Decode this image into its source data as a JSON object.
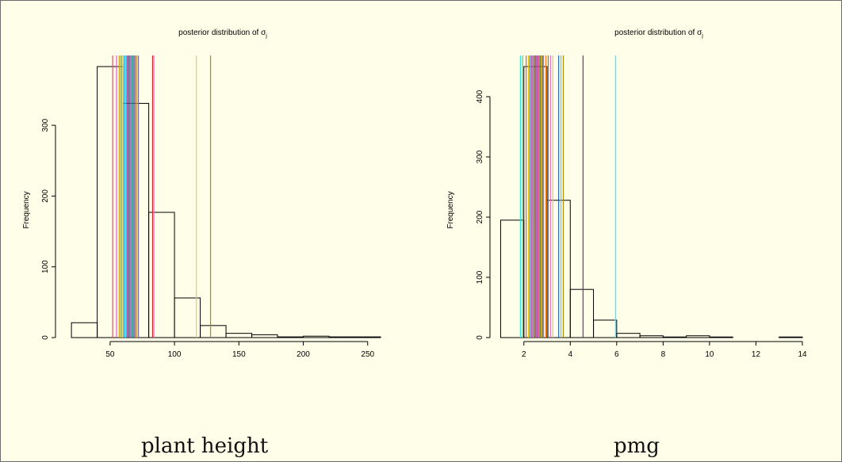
{
  "chart_data": [
    {
      "type": "bar",
      "title": "posterior distribution of σ",
      "title_subscript": "j",
      "xlabel": "",
      "ylabel": "Frequency",
      "caption": "plant height",
      "bins": [
        {
          "x0": 20,
          "x1": 40,
          "count": 21
        },
        {
          "x0": 40,
          "x1": 60,
          "count": 383
        },
        {
          "x0": 60,
          "x1": 80,
          "count": 331
        },
        {
          "x0": 80,
          "x1": 100,
          "count": 177
        },
        {
          "x0": 100,
          "x1": 120,
          "count": 56
        },
        {
          "x0": 120,
          "x1": 140,
          "count": 17
        },
        {
          "x0": 140,
          "x1": 160,
          "count": 6
        },
        {
          "x0": 160,
          "x1": 180,
          "count": 4
        },
        {
          "x0": 180,
          "x1": 200,
          "count": 1
        },
        {
          "x0": 200,
          "x1": 220,
          "count": 2
        },
        {
          "x0": 220,
          "x1": 240,
          "count": 1
        },
        {
          "x0": 240,
          "x1": 260,
          "count": 1
        }
      ],
      "vlines": [
        {
          "x": 52,
          "color": "#df536b"
        },
        {
          "x": 55,
          "color": "#d45ec9"
        },
        {
          "x": 57,
          "color": "#e69f00"
        },
        {
          "x": 58,
          "color": "#61d04f"
        },
        {
          "x": 59,
          "color": "#9e9e9e"
        },
        {
          "x": 60,
          "color": "#f5c710"
        },
        {
          "x": 61,
          "color": "#2297e6"
        },
        {
          "x": 62,
          "color": "#28e2e5"
        },
        {
          "x": 63,
          "color": "#cd0bbc"
        },
        {
          "x": 64,
          "color": "#555555"
        },
        {
          "x": 65,
          "color": "#2166ac"
        },
        {
          "x": 66,
          "color": "#8e44ad"
        },
        {
          "x": 67,
          "color": "#1b9e77"
        },
        {
          "x": 68,
          "color": "#3f51b5"
        },
        {
          "x": 69,
          "color": "#e7298a"
        },
        {
          "x": 70,
          "color": "#66a61e"
        },
        {
          "x": 71,
          "color": "#e6ab02"
        },
        {
          "x": 72,
          "color": "#7570b3"
        },
        {
          "x": 83,
          "color": "#d62728"
        },
        {
          "x": 84,
          "color": "#e377c2"
        },
        {
          "x": 117,
          "color": "#f0c070"
        },
        {
          "x": 128,
          "color": "#b8860b"
        }
      ],
      "xticks": [
        50,
        100,
        150,
        200,
        250
      ],
      "yticks": [
        0,
        100,
        200,
        300
      ],
      "xlim": [
        15,
        260
      ],
      "ylim": [
        0,
        383
      ],
      "frequency_axis_max": 300
    },
    {
      "type": "bar",
      "title": "posterior distribution of σ",
      "title_subscript": "j",
      "xlabel": "",
      "ylabel": "Frequency",
      "caption": "pmg",
      "bins": [
        {
          "x0": 1,
          "x1": 2,
          "count": 195
        },
        {
          "x0": 2,
          "x1": 3,
          "count": 450
        },
        {
          "x0": 3,
          "x1": 4,
          "count": 228
        },
        {
          "x0": 4,
          "x1": 5,
          "count": 80
        },
        {
          "x0": 5,
          "x1": 6,
          "count": 29
        },
        {
          "x0": 6,
          "x1": 7,
          "count": 7
        },
        {
          "x0": 7,
          "x1": 8,
          "count": 3
        },
        {
          "x0": 8,
          "x1": 9,
          "count": 1
        },
        {
          "x0": 9,
          "x1": 10,
          "count": 3
        },
        {
          "x0": 10,
          "x1": 11,
          "count": 1
        },
        {
          "x0": 11,
          "x1": 12,
          "count": 0
        },
        {
          "x0": 12,
          "x1": 13,
          "count": 0
        },
        {
          "x0": 13,
          "x1": 14,
          "count": 1
        }
      ],
      "vlines": [
        {
          "x": 1.85,
          "color": "#28e2e5"
        },
        {
          "x": 1.95,
          "color": "#61d04f"
        },
        {
          "x": 2.1,
          "color": "#df536b"
        },
        {
          "x": 2.2,
          "color": "#f5c710"
        },
        {
          "x": 2.25,
          "color": "#2297e6"
        },
        {
          "x": 2.3,
          "color": "#e69f00"
        },
        {
          "x": 2.35,
          "color": "#cd0bbc"
        },
        {
          "x": 2.4,
          "color": "#9e9e9e"
        },
        {
          "x": 2.45,
          "color": "#d62728"
        },
        {
          "x": 2.5,
          "color": "#1b9e77"
        },
        {
          "x": 2.55,
          "color": "#8e44ad"
        },
        {
          "x": 2.6,
          "color": "#e7298a"
        },
        {
          "x": 2.65,
          "color": "#66a61e"
        },
        {
          "x": 2.7,
          "color": "#3f51b5"
        },
        {
          "x": 2.75,
          "color": "#e6ab02"
        },
        {
          "x": 2.8,
          "color": "#555555"
        },
        {
          "x": 2.85,
          "color": "#d45ec9"
        },
        {
          "x": 2.95,
          "color": "#ff7f0e"
        },
        {
          "x": 3.05,
          "color": "#7570b3"
        },
        {
          "x": 3.15,
          "color": "#e377c2"
        },
        {
          "x": 3.25,
          "color": "#f0c070"
        },
        {
          "x": 3.5,
          "color": "#2166ac"
        },
        {
          "x": 3.6,
          "color": "#28e2e5"
        },
        {
          "x": 3.7,
          "color": "#b8860b"
        },
        {
          "x": 4.55,
          "color": "#7b2d8e"
        },
        {
          "x": 5.95,
          "color": "#7fd0e0"
        }
      ],
      "xticks": [
        2,
        4,
        6,
        8,
        10,
        12,
        14
      ],
      "yticks": [
        0,
        100,
        200,
        300,
        400
      ],
      "xlim": [
        0.95,
        14
      ],
      "ylim": [
        0,
        450
      ],
      "frequency_axis_max": 400
    }
  ]
}
